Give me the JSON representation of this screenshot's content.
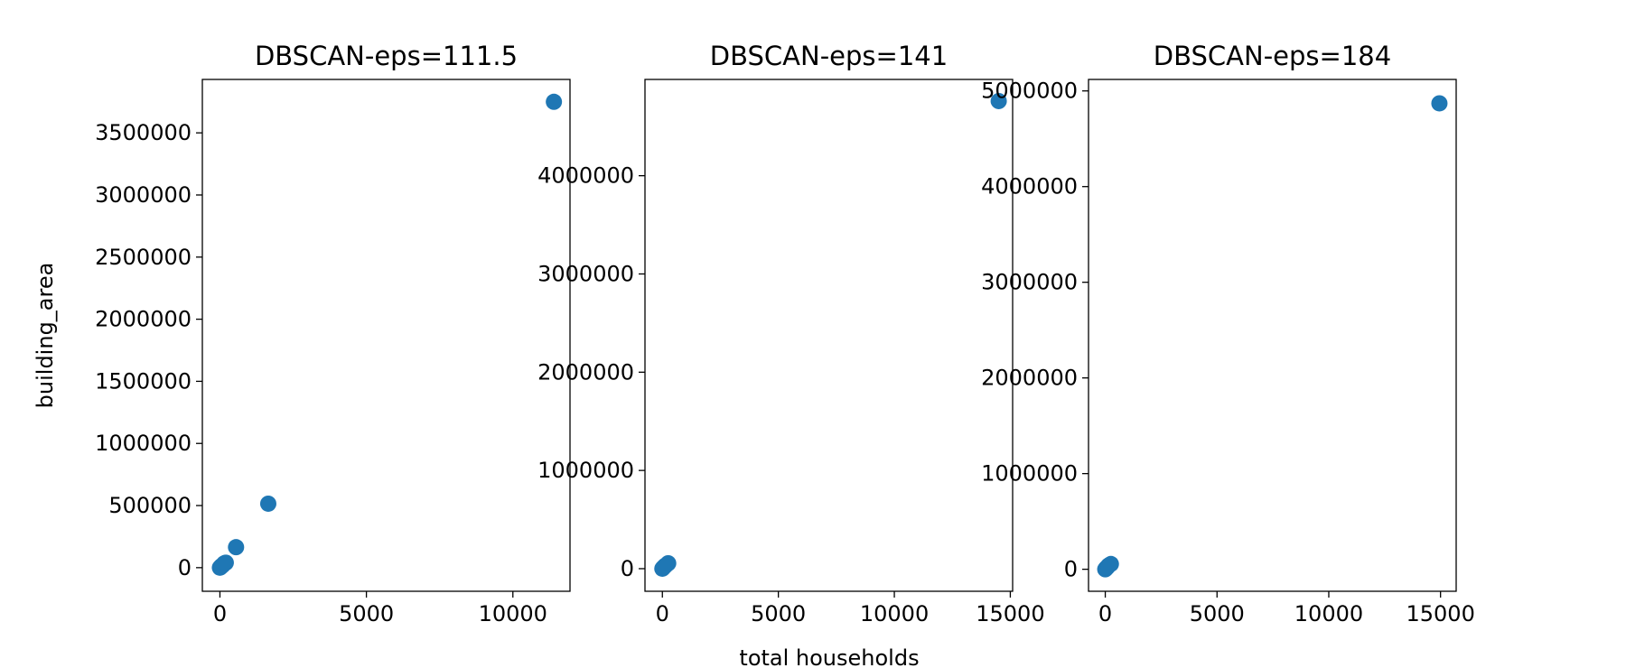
{
  "colors": {
    "point": "#1f77b4",
    "axis": "#000000",
    "background": "#ffffff"
  },
  "figure": {
    "shared_xlabel": "total households",
    "shared_ylabel": "building_area"
  },
  "chart_data": [
    {
      "type": "scatter",
      "title": "DBSCAN-eps=111.5",
      "xlabel": "",
      "ylabel": "building_area",
      "xlim": [
        -600,
        11950
      ],
      "ylim": [
        -190000,
        3930000
      ],
      "xticks": [
        0,
        5000,
        10000
      ],
      "yticks": [
        0,
        500000,
        1000000,
        1500000,
        2000000,
        2500000,
        3000000,
        3500000
      ],
      "grid": false,
      "points": [
        {
          "x": 0,
          "y": 0
        },
        {
          "x": 20,
          "y": 5000
        },
        {
          "x": 40,
          "y": 8000
        },
        {
          "x": 60,
          "y": 15000
        },
        {
          "x": 100,
          "y": 20000
        },
        {
          "x": 150,
          "y": 35000
        },
        {
          "x": 200,
          "y": 40000
        },
        {
          "x": 550,
          "y": 165000
        },
        {
          "x": 1650,
          "y": 515000
        },
        {
          "x": 11400,
          "y": 3750000
        }
      ]
    },
    {
      "type": "scatter",
      "title": "DBSCAN-eps=141",
      "xlabel": "total households",
      "ylabel": "",
      "xlim": [
        -750,
        15100
      ],
      "ylim": [
        -230000,
        4980000
      ],
      "xticks": [
        0,
        5000,
        10000,
        15000
      ],
      "yticks": [
        0,
        1000000,
        2000000,
        3000000,
        4000000
      ],
      "grid": false,
      "points": [
        {
          "x": 0,
          "y": 0
        },
        {
          "x": 30,
          "y": 8000
        },
        {
          "x": 60,
          "y": 15000
        },
        {
          "x": 100,
          "y": 25000
        },
        {
          "x": 150,
          "y": 35000
        },
        {
          "x": 250,
          "y": 55000
        },
        {
          "x": 14500,
          "y": 4760000
        }
      ]
    },
    {
      "type": "scatter",
      "title": "DBSCAN-eps=184",
      "xlabel": "",
      "ylabel": "",
      "xlim": [
        -750,
        15700
      ],
      "ylim": [
        -230000,
        5120000
      ],
      "xticks": [
        0,
        5000,
        10000,
        15000
      ],
      "yticks": [
        0,
        1000000,
        2000000,
        3000000,
        4000000,
        5000000
      ],
      "grid": false,
      "points": [
        {
          "x": 0,
          "y": 0
        },
        {
          "x": 30,
          "y": 8000
        },
        {
          "x": 60,
          "y": 15000
        },
        {
          "x": 100,
          "y": 25000
        },
        {
          "x": 150,
          "y": 40000
        },
        {
          "x": 250,
          "y": 55000
        },
        {
          "x": 14950,
          "y": 4870000
        }
      ]
    }
  ]
}
